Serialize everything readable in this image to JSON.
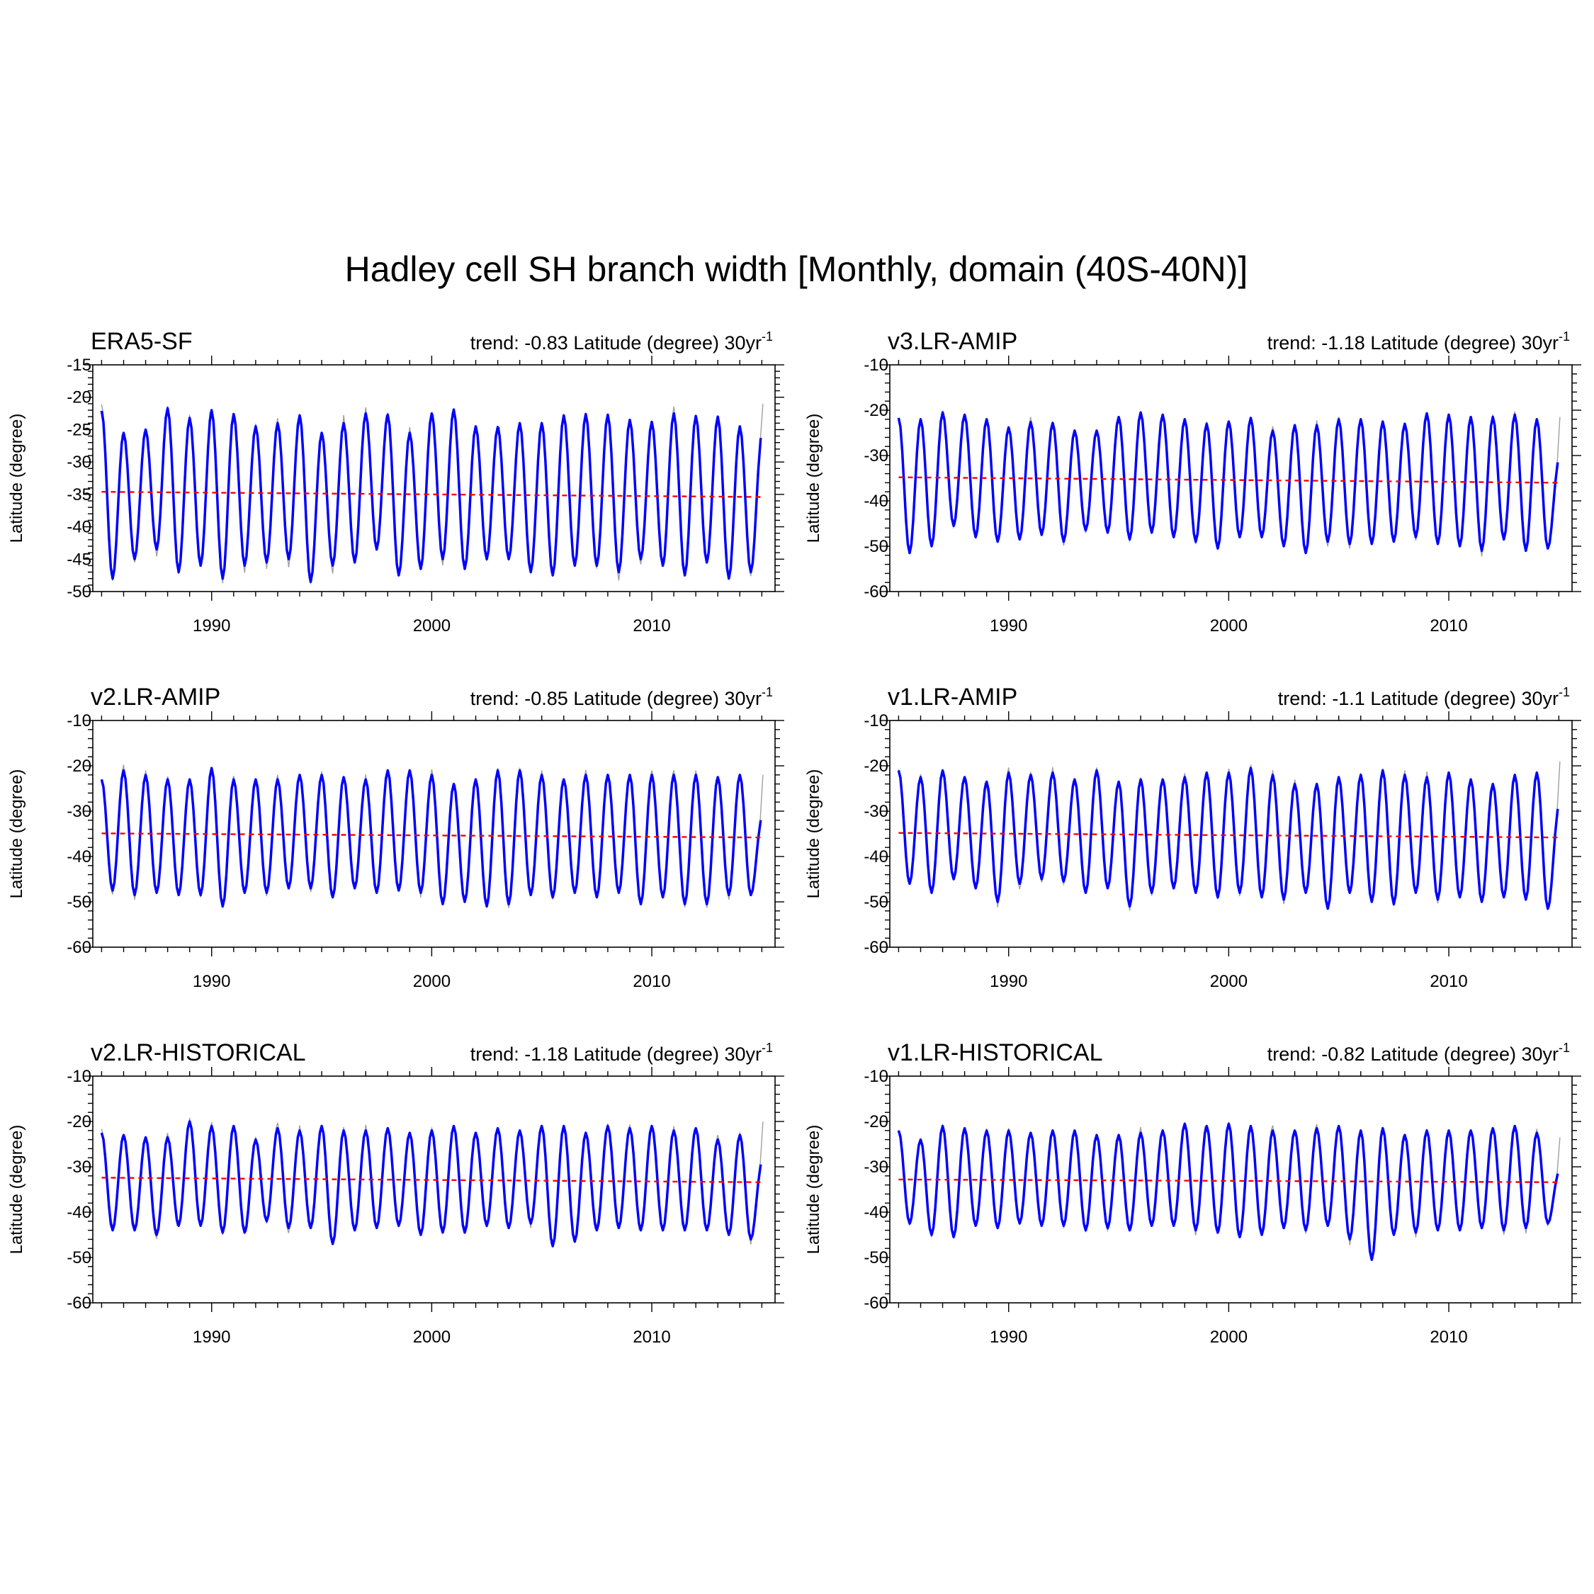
{
  "title": "Hadley cell SH branch width [Monthly, domain (40S-40N)]",
  "colors": {
    "monthly": "#a0a0a0",
    "smoothed": "#0000ff",
    "trend": "#ff0000",
    "axis": "#000000"
  },
  "chart_data": [
    {
      "type": "line",
      "name": "ERA5-SF",
      "trend_prefix": "trend: -0.83 Latitude (degree) 30yr",
      "trend_exponent": "-1",
      "ylabel": "Latitude (degree)",
      "xlim": [
        1984.6,
        2015.6
      ],
      "ylim": [
        -50,
        -15
      ],
      "yticks": [
        -15,
        -20,
        -25,
        -30,
        -35,
        -40,
        -45,
        -50
      ],
      "xticks": [
        1990,
        2000,
        2010
      ],
      "start_year": 1985,
      "n_years": 30,
      "summer": [
        -22.1,
        -25.5,
        -25.0,
        -21.7,
        -23.2,
        -22.0,
        -22.6,
        -24.5,
        -24.0,
        -22.8,
        -25.5,
        -24.0,
        -22.5,
        -22.7,
        -25.5,
        -22.5,
        -21.9,
        -24.5,
        -24.6,
        -24.0,
        -24.0,
        -22.8,
        -22.6,
        -22.7,
        -23.5,
        -23.8,
        -22.5,
        -22.9,
        -23.0,
        -24.5
      ],
      "winter": [
        -48.0,
        -45.0,
        -43.5,
        -47.0,
        -46.0,
        -48.0,
        -46.0,
        -45.5,
        -45.0,
        -48.5,
        -46.0,
        -45.5,
        -43.5,
        -47.5,
        -46.5,
        -45.0,
        -46.5,
        -45.0,
        -45.0,
        -47.0,
        -47.5,
        -46.0,
        -46.0,
        -47.0,
        -45.0,
        -46.0,
        -47.5,
        -45.5,
        -48.0,
        -47.0
      ],
      "trend_line": [
        -34.6,
        -35.4
      ],
      "end_value": -26.3,
      "end_monthly": -21.0
    },
    {
      "type": "line",
      "name": "v3.LR-AMIP",
      "trend_prefix": "trend: -1.18 Latitude (degree) 30yr",
      "trend_exponent": "-1",
      "ylabel": "Latitude (degree)",
      "xlim": [
        1984.6,
        2015.6
      ],
      "ylim": [
        -60,
        -10
      ],
      "yticks": [
        -10,
        -20,
        -30,
        -40,
        -50,
        -60
      ],
      "xticks": [
        1990,
        2000,
        2010
      ],
      "start_year": 1985,
      "n_years": 30,
      "summer": [
        -21.7,
        -22.0,
        -20.5,
        -21.0,
        -22.0,
        -23.8,
        -22.6,
        -22.8,
        -24.5,
        -24.5,
        -21.5,
        -20.5,
        -21.0,
        -22.0,
        -23.0,
        -22.5,
        -21.7,
        -24.5,
        -23.3,
        -23.3,
        -22.0,
        -22.0,
        -22.5,
        -23.0,
        -20.7,
        -21.0,
        -21.5,
        -21.5,
        -21.0,
        -22.0
      ],
      "winter": [
        -51.5,
        -50.0,
        -45.5,
        -48.0,
        -49.0,
        -48.5,
        -47.5,
        -49.0,
        -46.5,
        -47.0,
        -48.5,
        -47.0,
        -48.0,
        -49.0,
        -50.5,
        -48.0,
        -48.0,
        -50.0,
        -51.5,
        -49.0,
        -49.5,
        -49.5,
        -49.0,
        -48.0,
        -49.5,
        -50.0,
        -51.0,
        -48.5,
        -51.0,
        -50.5
      ],
      "trend_line": [
        -34.8,
        -36.0
      ],
      "end_value": -31.5,
      "end_monthly": -21.5
    },
    {
      "type": "line",
      "name": "v2.LR-AMIP",
      "trend_prefix": "trend: -0.85 Latitude (degree) 30yr",
      "trend_exponent": "-1",
      "ylabel": "Latitude (degree)",
      "xlim": [
        1984.6,
        2015.6
      ],
      "ylim": [
        -60,
        -10
      ],
      "yticks": [
        -10,
        -20,
        -30,
        -40,
        -50,
        -60
      ],
      "xticks": [
        1990,
        2000,
        2010
      ],
      "start_year": 1985,
      "n_years": 30,
      "summer": [
        -23.0,
        -21.0,
        -22.0,
        -23.0,
        -23.0,
        -20.5,
        -23.0,
        -23.0,
        -23.0,
        -22.0,
        -22.0,
        -22.5,
        -23.0,
        -21.0,
        -21.0,
        -22.0,
        -24.0,
        -23.0,
        -21.0,
        -21.0,
        -22.0,
        -23.0,
        -22.0,
        -22.0,
        -22.0,
        -22.0,
        -22.0,
        -22.0,
        -22.5,
        -22.0
      ],
      "winter": [
        -47.5,
        -48.5,
        -48.0,
        -48.5,
        -48.5,
        -51.0,
        -48.0,
        -48.0,
        -47.0,
        -47.0,
        -49.0,
        -47.0,
        -48.0,
        -47.5,
        -48.0,
        -50.5,
        -50.0,
        -51.0,
        -50.5,
        -48.5,
        -49.0,
        -48.0,
        -49.0,
        -48.0,
        -50.5,
        -49.0,
        -50.5,
        -50.5,
        -48.5,
        -48.5
      ],
      "trend_line": [
        -34.9,
        -35.8
      ],
      "end_value": -32.0,
      "end_monthly": -22.0
    },
    {
      "type": "line",
      "name": "v1.LR-AMIP",
      "trend_prefix": "trend: -1.1 Latitude (degree) 30yr",
      "trend_exponent": "-1",
      "ylabel": "Latitude (degree)",
      "xlim": [
        1984.6,
        2015.6
      ],
      "ylim": [
        -60,
        -10
      ],
      "yticks": [
        -10,
        -20,
        -30,
        -40,
        -50,
        -60
      ],
      "xticks": [
        1990,
        2000,
        2010
      ],
      "start_year": 1985,
      "n_years": 30,
      "summer": [
        -21.0,
        -22.5,
        -21.0,
        -22.5,
        -23.5,
        -21.5,
        -22.0,
        -21.5,
        -23.0,
        -21.0,
        -23.5,
        -23.0,
        -23.0,
        -22.5,
        -21.5,
        -21.5,
        -20.5,
        -22.0,
        -24.0,
        -24.0,
        -22.5,
        -22.0,
        -21.0,
        -22.0,
        -22.5,
        -21.5,
        -23.0,
        -24.0,
        -22.0,
        -21.5
      ],
      "winter": [
        -46.0,
        -48.0,
        -45.0,
        -47.0,
        -50.0,
        -46.0,
        -45.0,
        -45.5,
        -48.0,
        -47.0,
        -51.0,
        -48.0,
        -47.0,
        -48.0,
        -49.0,
        -48.0,
        -49.0,
        -49.5,
        -48.0,
        -51.5,
        -48.0,
        -50.0,
        -50.5,
        -48.0,
        -49.5,
        -49.0,
        -50.0,
        -49.0,
        -49.5,
        -51.5
      ],
      "trend_line": [
        -34.8,
        -35.8
      ],
      "end_value": -29.5,
      "end_monthly": -19.0
    },
    {
      "type": "line",
      "name": "v2.LR-HISTORICAL",
      "trend_prefix": "trend: -1.18 Latitude (degree) 30yr",
      "trend_exponent": "-1",
      "ylabel": "Latitude (degree)",
      "xlim": [
        1984.6,
        2015.6
      ],
      "ylim": [
        -60,
        -10
      ],
      "yticks": [
        -10,
        -20,
        -30,
        -40,
        -50,
        -60
      ],
      "xticks": [
        1990,
        2000,
        2010
      ],
      "start_year": 1985,
      "n_years": 30,
      "summer": [
        -22.5,
        -23.0,
        -23.5,
        -23.5,
        -20.0,
        -21.0,
        -21.0,
        -24.0,
        -21.5,
        -22.0,
        -21.0,
        -22.0,
        -22.0,
        -21.5,
        -22.5,
        -22.0,
        -21.0,
        -22.5,
        -21.5,
        -22.0,
        -21.0,
        -21.0,
        -22.5,
        -21.0,
        -21.5,
        -21.0,
        -22.0,
        -21.5,
        -24.0,
        -23.0
      ],
      "winter": [
        -44.0,
        -44.0,
        -45.0,
        -43.0,
        -43.0,
        -44.5,
        -44.5,
        -42.0,
        -43.5,
        -43.5,
        -47.0,
        -44.0,
        -43.5,
        -43.0,
        -45.0,
        -44.5,
        -44.5,
        -43.0,
        -43.5,
        -42.5,
        -47.5,
        -46.5,
        -44.0,
        -43.5,
        -44.0,
        -44.0,
        -44.0,
        -44.0,
        -45.0,
        -46.0
      ],
      "trend_line": [
        -32.4,
        -33.4
      ],
      "end_value": -29.5,
      "end_monthly": -20.0
    },
    {
      "type": "line",
      "name": "v1.LR-HISTORICAL",
      "trend_prefix": "trend: -0.82 Latitude (degree) 30yr",
      "trend_exponent": "-1",
      "ylabel": "Latitude (degree)",
      "xlim": [
        1984.6,
        2015.6
      ],
      "ylim": [
        -60,
        -10
      ],
      "yticks": [
        -10,
        -20,
        -30,
        -40,
        -50,
        -60
      ],
      "xticks": [
        1990,
        2000,
        2010
      ],
      "start_year": 1985,
      "n_years": 30,
      "summer": [
        -22.0,
        -24.0,
        -21.0,
        -21.5,
        -22.0,
        -22.0,
        -22.5,
        -22.0,
        -22.0,
        -23.0,
        -23.0,
        -22.5,
        -22.0,
        -20.5,
        -21.0,
        -20.5,
        -21.0,
        -22.0,
        -22.0,
        -21.5,
        -21.0,
        -22.0,
        -21.5,
        -23.0,
        -22.0,
        -22.0,
        -22.0,
        -21.5,
        -21.0,
        -22.5
      ],
      "winter": [
        -42.5,
        -45.0,
        -45.5,
        -43.0,
        -43.5,
        -42.5,
        -43.0,
        -43.0,
        -44.0,
        -43.5,
        -44.0,
        -43.0,
        -43.0,
        -44.0,
        -44.5,
        -45.5,
        -45.0,
        -43.5,
        -44.0,
        -43.0,
        -46.0,
        -50.5,
        -45.0,
        -44.5,
        -44.0,
        -44.0,
        -43.5,
        -44.0,
        -43.5,
        -42.5
      ],
      "trend_line": [
        -32.8,
        -33.4
      ],
      "end_value": -31.5,
      "end_monthly": -23.5
    }
  ]
}
